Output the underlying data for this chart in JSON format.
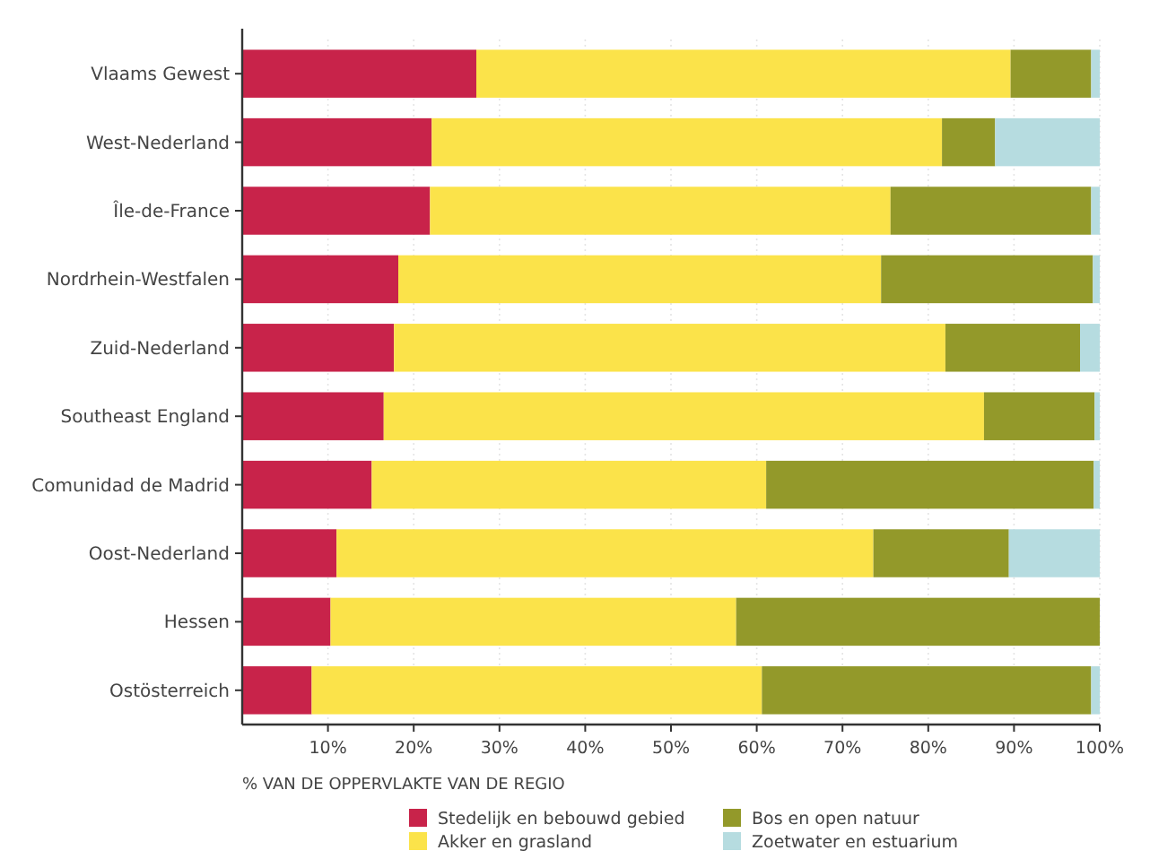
{
  "chart_data": {
    "type": "bar",
    "orientation": "horizontal",
    "stacked": true,
    "xlabel": "% VAN DE OPPERVLAKTE VAN DE REGIO",
    "categories": [
      "Vlaams Gewest",
      "West-Nederland",
      "Île-de-France",
      "Nordrhein-Westfalen",
      "Zuid-Nederland",
      "Southeast England",
      "Comunidad de Madrid",
      "Oost-Nederland",
      "Hessen",
      "Ostösterreich"
    ],
    "series": [
      {
        "name": "Stedelijk en bebouwd gebied",
        "color": "#c8234a",
        "values": [
          27.3,
          22.1,
          21.9,
          18.2,
          17.7,
          16.5,
          15.1,
          11.0,
          10.3,
          8.1
        ]
      },
      {
        "name": "Akker en grasland",
        "color": "#fbe34a",
        "values": [
          62.3,
          59.5,
          53.7,
          56.3,
          64.3,
          70.0,
          46.0,
          62.6,
          47.3,
          52.5
        ]
      },
      {
        "name": "Bos en open natuur",
        "color": "#93992a",
        "values": [
          9.4,
          6.2,
          23.4,
          24.7,
          15.7,
          12.9,
          38.2,
          15.8,
          42.4,
          38.4
        ]
      },
      {
        "name": "Zoetwater en estuarium",
        "color": "#b6dce0",
        "values": [
          1.0,
          12.2,
          1.0,
          0.8,
          2.3,
          0.6,
          0.7,
          10.6,
          null,
          1.0
        ]
      }
    ],
    "xlim": [
      0,
      100
    ],
    "xticks": [
      {
        "value": 10,
        "label": "10%"
      },
      {
        "value": 20,
        "label": "20%"
      },
      {
        "value": 30,
        "label": "30%"
      },
      {
        "value": 40,
        "label": "40%"
      },
      {
        "value": 50,
        "label": "50%"
      },
      {
        "value": 60,
        "label": "60%"
      },
      {
        "value": 70,
        "label": "70%"
      },
      {
        "value": 80,
        "label": "80%"
      },
      {
        "value": 90,
        "label": "90%"
      },
      {
        "value": 100,
        "label": "100%"
      }
    ],
    "grid": "x",
    "legend": "bottom"
  }
}
